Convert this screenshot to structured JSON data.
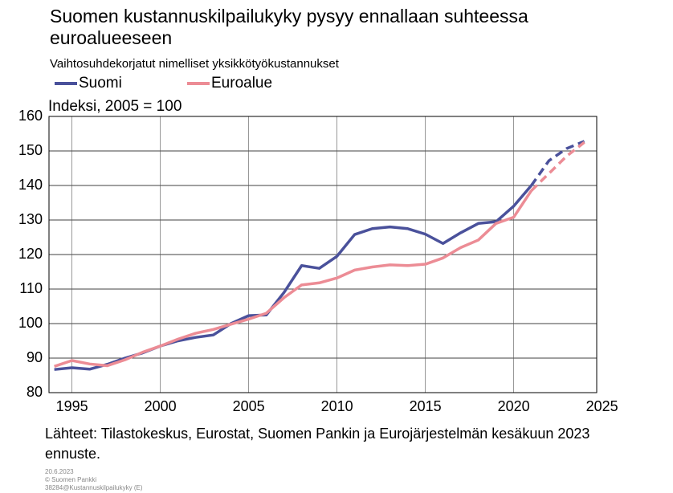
{
  "chart_data": {
    "type": "line",
    "title": [
      "Suomen kustannuskilpailukyky pysyy ennallaan suhteessa",
      "euroalueeseen"
    ],
    "subtitle": "Vaihtosuhdekorjatut nimelliset yksikkötyökustannukset",
    "ylabel": "Indeksi, 2005 = 100",
    "x": [
      1994,
      1995,
      1996,
      1997,
      1998,
      1999,
      2000,
      2001,
      2002,
      2003,
      2004,
      2005,
      2006,
      2007,
      2008,
      2009,
      2010,
      2011,
      2012,
      2013,
      2014,
      2015,
      2016,
      2017,
      2018,
      2019,
      2020,
      2021,
      2022,
      2023,
      2024
    ],
    "series": [
      {
        "name": "Suomi",
        "color": "#4a519b",
        "values": [
          86.7,
          87.2,
          86.8,
          88.2,
          90,
          91.5,
          93.5,
          95,
          96,
          96.7,
          100,
          102.3,
          102.5,
          109,
          116.8,
          116,
          119.5,
          125.8,
          127.5,
          128,
          127.5,
          125.9,
          123.2,
          126.3,
          129,
          129.5,
          134,
          140,
          147.2,
          150.7,
          152.8
        ]
      },
      {
        "name": "Euroalue",
        "color": "#ec8c95",
        "values": [
          87.6,
          89.3,
          88.3,
          87.8,
          89.5,
          91.7,
          93.5,
          95.5,
          97.2,
          98.3,
          99.8,
          101.3,
          103,
          107.5,
          111.2,
          111.8,
          113.2,
          115.5,
          116.4,
          117,
          116.8,
          117.2,
          119,
          122,
          124.2,
          129,
          130.8,
          138.5,
          143.5,
          148.5,
          152.5
        ]
      }
    ],
    "dashed_from": 2021,
    "xlim": [
      1993.7,
      2024.7
    ],
    "xticks": [
      1995,
      2000,
      2005,
      2010,
      2015,
      2020,
      2025
    ],
    "ylim": [
      80,
      160
    ],
    "yticks": [
      80,
      90,
      100,
      110,
      120,
      130,
      140,
      150,
      160
    ],
    "grid": true,
    "legend": "top-left",
    "source": [
      "Lähteet: Tilastokeskus, Eurostat, Suomen Pankin ja Eurojärjestelmän kesäkuun 2023",
      "ennuste."
    ],
    "footer": [
      "20.6.2023",
      "© Suomen Pankki",
      "38284@Kustannuskilpailukyky (E)"
    ]
  }
}
